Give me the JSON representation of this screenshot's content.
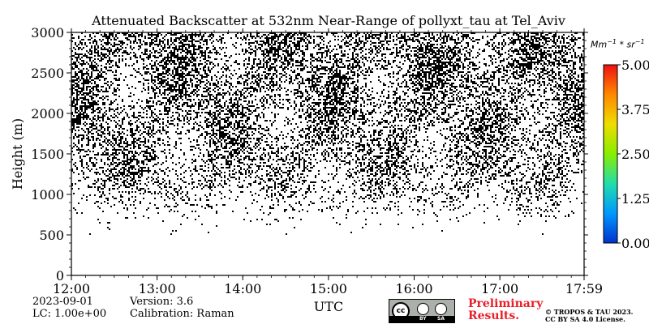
{
  "chart_data": {
    "type": "heatmap",
    "title": "Attenuated Backscatter at 532nm Near-Range of pollyxt_tau at Tel_Aviv",
    "xlabel": "UTC",
    "ylabel": "Height (m)",
    "x_ticks": [
      "12:00",
      "13:00",
      "14:00",
      "15:00",
      "16:00",
      "17:00",
      "17:59"
    ],
    "x_tick_hours": [
      12,
      13,
      14,
      15,
      16,
      17,
      17.983
    ],
    "xlim_hours": [
      12,
      17.983
    ],
    "y_ticks": [
      "0",
      "500",
      "1000",
      "1500",
      "2000",
      "2500",
      "3000"
    ],
    "y_tick_values": [
      0,
      500,
      1000,
      1500,
      2000,
      2500,
      3000
    ],
    "ylim": [
      0,
      3000
    ],
    "colorbar": {
      "ticks": [
        "0.00",
        "1.25",
        "2.50",
        "3.75",
        "5.00"
      ],
      "tick_values": [
        0,
        1.25,
        2.5,
        3.75,
        5
      ],
      "range": [
        0,
        5
      ],
      "colormap": [
        "#0033cc",
        "#0099ff",
        "#22ddaa",
        "#88ee00",
        "#eedd00",
        "#ff8800",
        "#ee1111"
      ]
    },
    "noise_profile": {
      "description_heights_m": [
        0,
        500,
        700,
        900,
        1100,
        1500,
        2000,
        2500,
        3000
      ],
      "density": [
        0,
        0,
        0.04,
        0.14,
        0.3,
        0.4,
        0.46,
        0.5,
        0.52
      ]
    },
    "signal_color": "#000000"
  },
  "info": {
    "date": "2023-09-01",
    "lc": "LC: 1.00e+00",
    "version": "Version: 3.6",
    "calibration": "Calibration: Raman"
  },
  "colorbar_unit": {
    "base1": "Mm",
    "exp1": "−1",
    "mid": " * ",
    "base2": "sr",
    "exp2": "−1"
  },
  "license": {
    "badge_cc": "cc",
    "badge_by": "BY",
    "badge_sa": "SA",
    "preliminary": "Preliminary Results.",
    "copyright_line1": "© TROPOS & TAU 2023.",
    "copyright_line2": "CC BY SA 4.0 License."
  }
}
